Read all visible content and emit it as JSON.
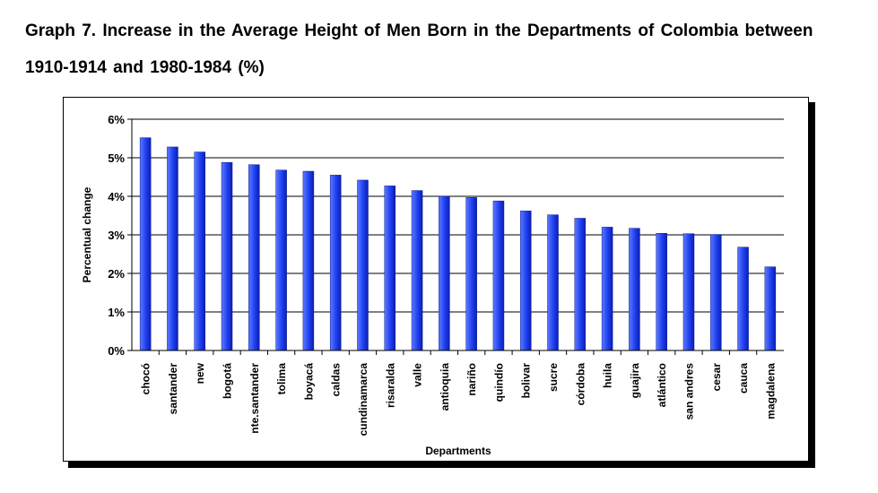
{
  "chart_data": {
    "type": "bar",
    "title": "Graph 7. Increase in the Average Height of Men Born in the Departments of Colombia between 1910-1914 and 1980-1984 (%)",
    "xlabel": "Departments",
    "ylabel": "Percentual change",
    "ylim": [
      0,
      6
    ],
    "yticks": [
      "0%",
      "1%",
      "2%",
      "3%",
      "4%",
      "5%",
      "6%"
    ],
    "grid": true,
    "legend": "none",
    "bar_color": "#1f3ff0",
    "categories": [
      "chocó",
      "santander",
      "new",
      "bogotá",
      "nte.santander",
      "tolima",
      "boyacá",
      "caldas",
      "cundinamarca",
      "risaralda",
      "valle",
      "antioquia",
      "nariño",
      "quindío",
      "bolivar",
      "sucre",
      "córdoba",
      "huila",
      "guajira",
      "atlántico",
      "san andres",
      "cesar",
      "cauca",
      "magdalena"
    ],
    "values": [
      5.52,
      5.28,
      5.15,
      4.88,
      4.82,
      4.68,
      4.65,
      4.55,
      4.42,
      4.27,
      4.15,
      4.0,
      3.97,
      3.88,
      3.62,
      3.52,
      3.43,
      3.2,
      3.17,
      3.04,
      3.03,
      3.01,
      2.68,
      2.17
    ]
  }
}
